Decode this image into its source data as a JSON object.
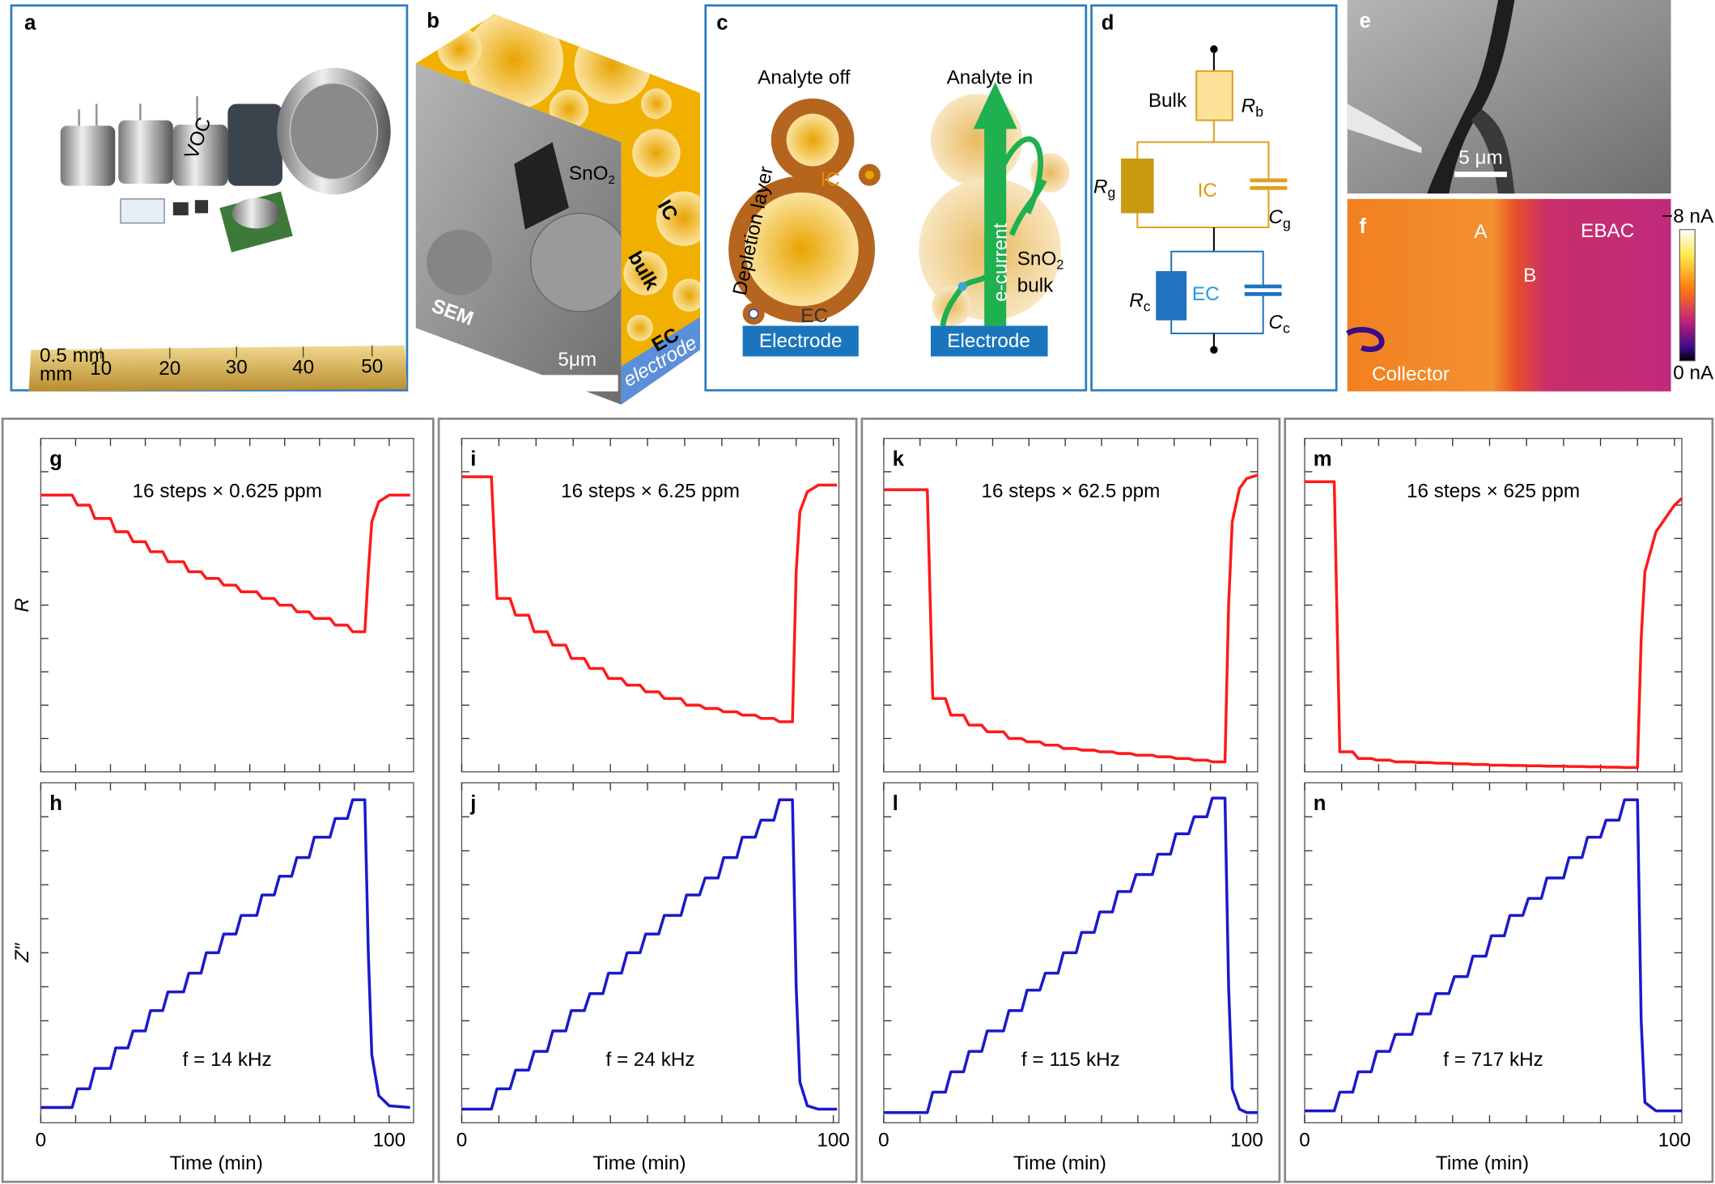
{
  "panels": {
    "a": {
      "label": "a",
      "ruler": {
        "unit_top": "0.5 mm",
        "unit_bottom": "mm",
        "numbers": [
          "10",
          "20",
          "30",
          "40",
          "50"
        ]
      },
      "sensor_text": "VOC"
    },
    "b": {
      "label": "b",
      "material": [
        "SnO",
        "2"
      ],
      "ic": "IC",
      "bulk": "bulk",
      "ec": "EC",
      "electrode": "electrode",
      "sem": "SEM",
      "scale": "5μm"
    },
    "c": {
      "label": "c",
      "left_title": "Analyte off",
      "right_title": "Analyte in",
      "ic": "IC",
      "depletion": "Depletion layer",
      "ec": "EC",
      "electrode_left": "Electrode",
      "electrode_right": "Electrode",
      "current": "e-current",
      "material": [
        "SnO",
        "2"
      ],
      "bulk": "bulk"
    },
    "d": {
      "label": "d",
      "bulk": "Bulk",
      "rb": [
        "R",
        "b"
      ],
      "rg": [
        "R",
        "g"
      ],
      "ic": "IC",
      "cg": [
        "C",
        "g"
      ],
      "rc": [
        "R",
        "c"
      ],
      "ec": "EC",
      "cc": [
        "C",
        "c"
      ]
    },
    "e": {
      "label": "e",
      "scale": "5 μm"
    },
    "f": {
      "label": "f",
      "a": "A",
      "b": "B",
      "ebac": "EBAC",
      "collector": "Collector",
      "cbar_top": "−8 nA",
      "cbar_bottom": "0 nA"
    }
  },
  "chart_data": [
    {
      "label": "g",
      "type": "line",
      "annotation": "16 steps × 0.625 ppm",
      "ylabel": "R",
      "xlim": [
        0,
        107
      ],
      "ylim": [
        0,
        1
      ],
      "xminor": [
        0,
        10,
        20,
        30,
        40,
        50,
        60,
        70,
        80,
        90,
        100
      ],
      "yminor": [
        0.1,
        0.2,
        0.3,
        0.4,
        0.5,
        0.6,
        0.7,
        0.8,
        0.9
      ],
      "x": [
        0,
        9,
        10.5,
        14,
        15.5,
        20,
        21.5,
        25,
        26.5,
        30,
        31.5,
        35,
        36.5,
        41,
        42.5,
        46,
        47.5,
        51,
        52.5,
        56,
        57.5,
        62,
        63.5,
        67,
        68.5,
        72,
        73.5,
        77,
        78.5,
        83,
        84.5,
        88,
        89.5,
        93,
        94,
        95,
        97,
        100,
        106
      ],
      "series": [
        {
          "color": "#ff1a1a",
          "values": [
            0.83,
            0.83,
            0.8,
            0.8,
            0.76,
            0.76,
            0.72,
            0.72,
            0.69,
            0.69,
            0.66,
            0.66,
            0.63,
            0.63,
            0.6,
            0.6,
            0.58,
            0.58,
            0.56,
            0.56,
            0.54,
            0.54,
            0.52,
            0.52,
            0.5,
            0.5,
            0.48,
            0.48,
            0.46,
            0.46,
            0.44,
            0.44,
            0.42,
            0.42,
            0.6,
            0.75,
            0.81,
            0.83,
            0.83
          ]
        }
      ]
    },
    {
      "label": "h",
      "type": "line",
      "annotation": "f = 14 kHz",
      "ylabel": "Z″",
      "xlabel": "Time (min)",
      "xticks": [
        0,
        100
      ],
      "xlim": [
        0,
        107
      ],
      "ylim": [
        0,
        1
      ],
      "xminor": [
        0,
        10,
        20,
        30,
        40,
        50,
        60,
        70,
        80,
        90,
        100
      ],
      "yminor": [
        0.1,
        0.2,
        0.3,
        0.4,
        0.5,
        0.6,
        0.7,
        0.8,
        0.9
      ],
      "x": [
        0,
        9,
        10.5,
        14,
        15.5,
        20,
        21.5,
        25,
        26.5,
        30,
        31.5,
        35,
        36.5,
        41,
        42.5,
        46,
        47.5,
        51,
        52.5,
        56,
        57.5,
        62,
        63.5,
        67,
        68.5,
        72,
        73.5,
        77,
        78.5,
        83,
        84.5,
        88,
        89.5,
        93,
        94,
        95,
        97,
        100,
        106
      ],
      "series": [
        {
          "color": "#1a1acc",
          "values": [
            0.045,
            0.045,
            0.1,
            0.1,
            0.16,
            0.16,
            0.22,
            0.22,
            0.27,
            0.27,
            0.33,
            0.33,
            0.385,
            0.385,
            0.44,
            0.44,
            0.5,
            0.5,
            0.555,
            0.555,
            0.61,
            0.61,
            0.67,
            0.67,
            0.725,
            0.725,
            0.78,
            0.78,
            0.84,
            0.84,
            0.895,
            0.895,
            0.95,
            0.95,
            0.5,
            0.2,
            0.08,
            0.05,
            0.045
          ]
        }
      ]
    },
    {
      "label": "i",
      "type": "line",
      "annotation": "16 steps × 6.25 ppm",
      "xlim": [
        0,
        101.5
      ],
      "ylim": [
        0,
        1
      ],
      "xminor": [
        0,
        10,
        20,
        30,
        40,
        50,
        60,
        70,
        80,
        90,
        100
      ],
      "yminor": [
        0.1,
        0.2,
        0.3,
        0.4,
        0.5,
        0.6,
        0.7,
        0.8,
        0.9
      ],
      "x": [
        0,
        8,
        9.5,
        13,
        14.5,
        18,
        19.5,
        23,
        24.5,
        28,
        29.5,
        33,
        34.5,
        38,
        39.5,
        43,
        44.5,
        48,
        49.5,
        53,
        54.5,
        59,
        60.5,
        64,
        65.5,
        69,
        70.5,
        74,
        75.5,
        79,
        80.5,
        84,
        85.5,
        89,
        90,
        91,
        93,
        96,
        101
      ],
      "series": [
        {
          "color": "#ff1a1a",
          "values": [
            0.885,
            0.885,
            0.52,
            0.52,
            0.47,
            0.47,
            0.42,
            0.42,
            0.38,
            0.38,
            0.34,
            0.34,
            0.31,
            0.31,
            0.28,
            0.28,
            0.26,
            0.26,
            0.24,
            0.24,
            0.22,
            0.22,
            0.2,
            0.2,
            0.19,
            0.19,
            0.18,
            0.18,
            0.17,
            0.17,
            0.16,
            0.16,
            0.15,
            0.15,
            0.6,
            0.78,
            0.84,
            0.86,
            0.86
          ]
        }
      ]
    },
    {
      "label": "j",
      "type": "line",
      "annotation": "f = 24 kHz",
      "xlabel": "Time (min)",
      "xticks": [
        0,
        100
      ],
      "xlim": [
        0,
        101.5
      ],
      "ylim": [
        0,
        1
      ],
      "xminor": [
        0,
        10,
        20,
        30,
        40,
        50,
        60,
        70,
        80,
        90,
        100
      ],
      "yminor": [
        0.1,
        0.2,
        0.3,
        0.4,
        0.5,
        0.6,
        0.7,
        0.8,
        0.9
      ],
      "x": [
        0,
        8,
        9.5,
        13,
        14.5,
        18,
        19.5,
        23,
        24.5,
        28,
        29.5,
        33,
        34.5,
        38,
        39.5,
        43,
        44.5,
        48,
        49.5,
        53,
        54.5,
        59,
        60.5,
        64,
        65.5,
        69,
        70.5,
        74,
        75.5,
        79,
        80.5,
        84,
        85.5,
        89,
        90,
        91,
        93,
        96,
        101
      ],
      "series": [
        {
          "color": "#1a1acc",
          "values": [
            0.04,
            0.04,
            0.1,
            0.1,
            0.155,
            0.155,
            0.21,
            0.21,
            0.27,
            0.27,
            0.33,
            0.33,
            0.38,
            0.38,
            0.44,
            0.44,
            0.5,
            0.5,
            0.555,
            0.555,
            0.61,
            0.61,
            0.67,
            0.67,
            0.72,
            0.72,
            0.78,
            0.78,
            0.84,
            0.84,
            0.89,
            0.89,
            0.95,
            0.95,
            0.4,
            0.12,
            0.05,
            0.04,
            0.04
          ]
        }
      ]
    },
    {
      "label": "k",
      "type": "line",
      "annotation": "16 steps × 62.5 ppm",
      "xlim": [
        0,
        103
      ],
      "ylim": [
        0,
        1
      ],
      "xminor": [
        0,
        10,
        20,
        30,
        40,
        50,
        60,
        70,
        80,
        90,
        100
      ],
      "yminor": [
        0.1,
        0.2,
        0.3,
        0.4,
        0.5,
        0.6,
        0.7,
        0.8,
        0.9
      ],
      "x": [
        0,
        12,
        13.5,
        17,
        18.5,
        22,
        23.5,
        27,
        28.5,
        33,
        34.5,
        38,
        39.5,
        43,
        44.5,
        48,
        49.5,
        53,
        54.5,
        58,
        59.5,
        63,
        64.5,
        68,
        69.5,
        74,
        75.5,
        79,
        80.5,
        84,
        85.5,
        89,
        90.5,
        94,
        95,
        96,
        98,
        100,
        103
      ],
      "series": [
        {
          "color": "#ff1a1a",
          "values": [
            0.846,
            0.846,
            0.22,
            0.22,
            0.17,
            0.17,
            0.14,
            0.14,
            0.12,
            0.12,
            0.1,
            0.1,
            0.09,
            0.09,
            0.08,
            0.08,
            0.07,
            0.07,
            0.065,
            0.065,
            0.06,
            0.06,
            0.055,
            0.055,
            0.05,
            0.05,
            0.045,
            0.045,
            0.04,
            0.04,
            0.035,
            0.035,
            0.03,
            0.03,
            0.5,
            0.75,
            0.85,
            0.88,
            0.89
          ]
        }
      ]
    },
    {
      "label": "l",
      "type": "line",
      "annotation": "f = 115 kHz",
      "xlabel": "Time (min)",
      "xticks": [
        0,
        100
      ],
      "xlim": [
        0,
        103
      ],
      "ylim": [
        0,
        1
      ],
      "xminor": [
        0,
        10,
        20,
        30,
        40,
        50,
        60,
        70,
        80,
        90,
        100
      ],
      "yminor": [
        0.1,
        0.2,
        0.3,
        0.4,
        0.5,
        0.6,
        0.7,
        0.8,
        0.9
      ],
      "x": [
        0,
        12,
        13.5,
        17,
        18.5,
        22,
        23.5,
        27,
        28.5,
        33,
        34.5,
        38,
        39.5,
        43,
        44.5,
        48,
        49.5,
        53,
        54.5,
        58,
        59.5,
        63,
        64.5,
        68,
        69.5,
        74,
        75.5,
        79,
        80.5,
        84,
        85.5,
        89,
        90.5,
        94,
        95,
        96,
        98,
        100,
        103
      ],
      "series": [
        {
          "color": "#1a1acc",
          "values": [
            0.03,
            0.03,
            0.09,
            0.09,
            0.15,
            0.15,
            0.21,
            0.21,
            0.27,
            0.27,
            0.33,
            0.33,
            0.39,
            0.39,
            0.44,
            0.44,
            0.5,
            0.5,
            0.56,
            0.56,
            0.62,
            0.62,
            0.68,
            0.68,
            0.73,
            0.73,
            0.79,
            0.79,
            0.85,
            0.85,
            0.9,
            0.9,
            0.955,
            0.955,
            0.4,
            0.1,
            0.04,
            0.03,
            0.03
          ]
        }
      ]
    },
    {
      "label": "m",
      "type": "line",
      "annotation": "16 steps × 625 ppm",
      "xlim": [
        0,
        102
      ],
      "ylim": [
        0,
        1
      ],
      "xminor": [
        0,
        10,
        20,
        30,
        40,
        50,
        60,
        70,
        80,
        90,
        100
      ],
      "yminor": [
        0.1,
        0.2,
        0.3,
        0.4,
        0.5,
        0.6,
        0.7,
        0.8,
        0.9
      ],
      "x": [
        0,
        8,
        9.5,
        13,
        14.5,
        18,
        19.5,
        23,
        24.5,
        29,
        30.5,
        34,
        35.5,
        39,
        40.5,
        44,
        45.5,
        49,
        50.5,
        54,
        55.5,
        59,
        60.5,
        64,
        65.5,
        70,
        71.5,
        75,
        76.5,
        80,
        81.5,
        85,
        86.5,
        90,
        91,
        92,
        95,
        100,
        102
      ],
      "series": [
        {
          "color": "#ff1a1a",
          "values": [
            0.87,
            0.87,
            0.06,
            0.06,
            0.04,
            0.04,
            0.035,
            0.035,
            0.03,
            0.03,
            0.028,
            0.028,
            0.026,
            0.026,
            0.024,
            0.024,
            0.022,
            0.022,
            0.02,
            0.02,
            0.019,
            0.019,
            0.018,
            0.018,
            0.017,
            0.017,
            0.016,
            0.016,
            0.015,
            0.015,
            0.014,
            0.014,
            0.013,
            0.013,
            0.4,
            0.6,
            0.72,
            0.8,
            0.82
          ]
        }
      ]
    },
    {
      "label": "n",
      "type": "line",
      "annotation": "f = 717 kHz",
      "xlabel": "Time (min)",
      "xticks": [
        0,
        100
      ],
      "xlim": [
        0,
        102
      ],
      "ylim": [
        0,
        1
      ],
      "xminor": [
        0,
        10,
        20,
        30,
        40,
        50,
        60,
        70,
        80,
        90,
        100
      ],
      "yminor": [
        0.1,
        0.2,
        0.3,
        0.4,
        0.5,
        0.6,
        0.7,
        0.8,
        0.9
      ],
      "x": [
        0,
        8,
        9.5,
        13,
        14.5,
        18,
        19.5,
        23,
        24.5,
        29,
        30.5,
        34,
        35.5,
        39,
        40.5,
        44,
        45.5,
        49,
        50.5,
        54,
        55.5,
        59,
        60.5,
        64,
        65.5,
        70,
        71.5,
        75,
        76.5,
        80,
        81.5,
        85,
        86.5,
        90,
        91,
        92,
        95,
        100,
        102
      ],
      "series": [
        {
          "color": "#1a1acc",
          "values": [
            0.035,
            0.035,
            0.09,
            0.09,
            0.15,
            0.15,
            0.21,
            0.21,
            0.26,
            0.26,
            0.32,
            0.32,
            0.38,
            0.38,
            0.43,
            0.43,
            0.49,
            0.49,
            0.55,
            0.55,
            0.61,
            0.61,
            0.66,
            0.66,
            0.72,
            0.72,
            0.78,
            0.78,
            0.84,
            0.84,
            0.89,
            0.89,
            0.95,
            0.95,
            0.3,
            0.06,
            0.035,
            0.035,
            0.035
          ]
        }
      ]
    }
  ]
}
